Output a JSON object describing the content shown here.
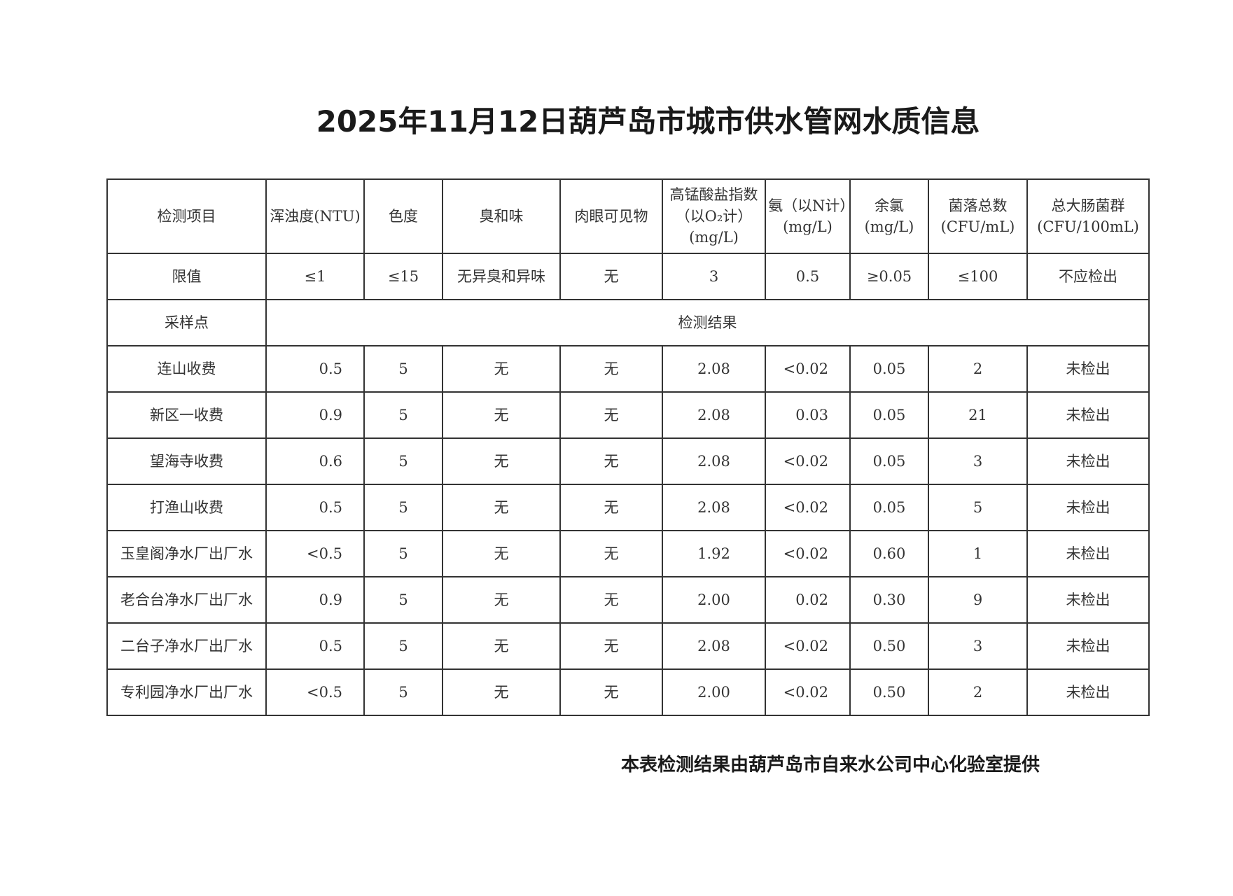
{
  "title": "2025年11月12日葫芦岛市城市供水管网水质信息",
  "table": {
    "headers": [
      "检测项目",
      "浑浊度(NTU)",
      "色度",
      "臭和味",
      "肉眼可见物",
      "高锰酸盐指数（以O₂计）(mg/L)",
      "氨（以N计）(mg/L)",
      "余氯(mg/L)",
      "菌落总数(CFU/mL)",
      "总大肠菌群(CFU/100mL)"
    ],
    "limits_label": "限值",
    "limits": [
      "≤1",
      "≤15",
      "无异臭和异味",
      "无",
      "3",
      "0.5",
      "≥0.05",
      "≤100",
      "不应检出"
    ],
    "sample_label": "采样点",
    "results_label": "检测结果",
    "rows": [
      [
        "连山收费",
        "0.5",
        "5",
        "无",
        "无",
        "2.08",
        "<0.02",
        "0.05",
        "2",
        "未检出"
      ],
      [
        "新区一收费",
        "0.9",
        "5",
        "无",
        "无",
        "2.08",
        "0.03",
        "0.05",
        "21",
        "未检出"
      ],
      [
        "望海寺收费",
        "0.6",
        "5",
        "无",
        "无",
        "2.08",
        "<0.02",
        "0.05",
        "3",
        "未检出"
      ],
      [
        "打渔山收费",
        "0.5",
        "5",
        "无",
        "无",
        "2.08",
        "<0.02",
        "0.05",
        "5",
        "未检出"
      ],
      [
        "玉皇阁净水厂出厂水",
        "<0.5",
        "5",
        "无",
        "无",
        "1.92",
        "<0.02",
        "0.60",
        "1",
        "未检出"
      ],
      [
        "老合台净水厂出厂水",
        "0.9",
        "5",
        "无",
        "无",
        "2.00",
        "0.02",
        "0.30",
        "9",
        "未检出"
      ],
      [
        "二台子净水厂出厂水",
        "0.5",
        "5",
        "无",
        "无",
        "2.08",
        "<0.02",
        "0.50",
        "3",
        "未检出"
      ],
      [
        "专利园净水厂出厂水",
        "<0.5",
        "5",
        "无",
        "无",
        "2.00",
        "<0.02",
        "0.50",
        "2",
        "未检出"
      ]
    ]
  },
  "footer": "本表检测结果由葫芦岛市自来水公司中心化验室提供"
}
